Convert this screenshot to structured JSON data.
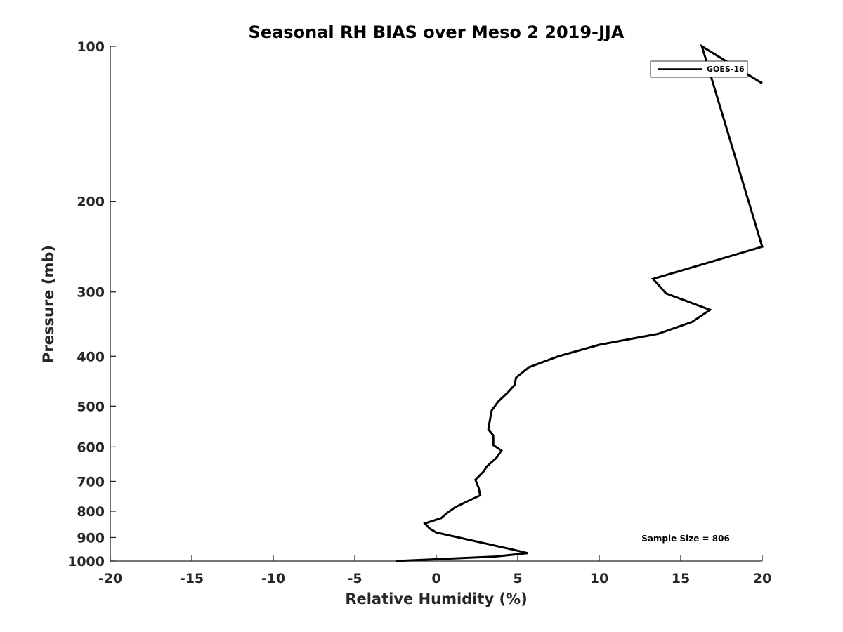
{
  "chart_data": {
    "type": "line",
    "title": "Seasonal RH BIAS over Meso 2  2019-JJA",
    "xlabel": "Relative Humidity (%)",
    "ylabel": "Pressure (mb)",
    "xlim": [
      -20,
      20
    ],
    "ylim": [
      100,
      1000
    ],
    "yscale": "log",
    "y_reversed": true,
    "x_ticks": [
      -20,
      -15,
      -10,
      -5,
      0,
      5,
      10,
      15,
      20
    ],
    "y_ticks": [
      100,
      200,
      300,
      400,
      500,
      600,
      700,
      800,
      900,
      1000
    ],
    "legend_position": "top-right",
    "grid": false,
    "annotation": "Sample Size = 806",
    "colors": {
      "series": "#000000",
      "axis": "#262626"
    },
    "series": [
      {
        "name": "GOES-16",
        "points": [
          {
            "x": -2.5,
            "y": 1000
          },
          {
            "x": 3.6,
            "y": 980
          },
          {
            "x": 5.6,
            "y": 965
          },
          {
            "x": 4.7,
            "y": 950
          },
          {
            "x": 0.0,
            "y": 880
          },
          {
            "x": -0.4,
            "y": 865
          },
          {
            "x": -0.7,
            "y": 845
          },
          {
            "x": 0.3,
            "y": 825
          },
          {
            "x": 0.7,
            "y": 805
          },
          {
            "x": 1.2,
            "y": 785
          },
          {
            "x": 2.7,
            "y": 745
          },
          {
            "x": 2.6,
            "y": 720
          },
          {
            "x": 2.4,
            "y": 695
          },
          {
            "x": 2.9,
            "y": 670
          },
          {
            "x": 3.1,
            "y": 655
          },
          {
            "x": 3.7,
            "y": 630
          },
          {
            "x": 4.0,
            "y": 610
          },
          {
            "x": 3.5,
            "y": 595
          },
          {
            "x": 3.5,
            "y": 570
          },
          {
            "x": 3.2,
            "y": 555
          },
          {
            "x": 3.3,
            "y": 530
          },
          {
            "x": 3.4,
            "y": 510
          },
          {
            "x": 3.8,
            "y": 490
          },
          {
            "x": 4.4,
            "y": 470
          },
          {
            "x": 4.8,
            "y": 455
          },
          {
            "x": 4.9,
            "y": 440
          },
          {
            "x": 5.7,
            "y": 420
          },
          {
            "x": 7.5,
            "y": 400
          },
          {
            "x": 10.0,
            "y": 380
          },
          {
            "x": 13.6,
            "y": 362
          },
          {
            "x": 15.7,
            "y": 343
          },
          {
            "x": 16.8,
            "y": 325
          },
          {
            "x": 14.1,
            "y": 302
          },
          {
            "x": 13.3,
            "y": 283
          },
          {
            "x": 20.0,
            "y": 245
          },
          {
            "x": 16.3,
            "y": 100
          },
          {
            "x": 20.0,
            "y": 118
          }
        ]
      }
    ]
  }
}
